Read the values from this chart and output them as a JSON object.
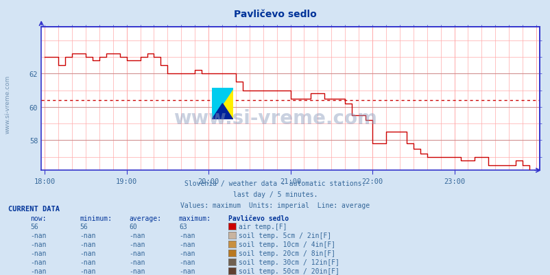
{
  "title": "Pavličevo sedlo",
  "bg_color": "#d4e4f4",
  "plot_bg_color": "#ffffff",
  "line_color": "#cc0000",
  "avg_line_color": "#cc0000",
  "avg_value": 60.4,
  "title_color": "#003399",
  "text_color": "#336699",
  "subtitle1": "Slovenia / weather data - automatic stations.",
  "subtitle2": "last day / 5 minutes.",
  "subtitle3": "Values: maximum  Units: imperial  Line: average",
  "xtick_labels": [
    "18:00",
    "19:00",
    "20:00",
    "21:00",
    "22:00",
    "23:00"
  ],
  "xtick_positions": [
    0,
    12,
    24,
    36,
    48,
    60
  ],
  "ytick_labels": [
    "58",
    "60",
    "62"
  ],
  "ytick_positions": [
    58,
    60,
    62
  ],
  "ylim": [
    56.2,
    64.8
  ],
  "xlim": [
    -0.5,
    72.5
  ],
  "current_data_label": "CURRENT DATA",
  "col_headers": [
    "now:",
    "minimum:",
    "average:",
    "maximum:",
    "Pavličevo sedlo"
  ],
  "rows": [
    {
      "now": "56",
      "min": "56",
      "avg": "60",
      "max": "63",
      "color": "#cc0000",
      "label": "air temp.[F]"
    },
    {
      "now": "-nan",
      "min": "-nan",
      "avg": "-nan",
      "max": "-nan",
      "color": "#c8b4a0",
      "label": "soil temp. 5cm / 2in[F]"
    },
    {
      "now": "-nan",
      "min": "-nan",
      "avg": "-nan",
      "max": "-nan",
      "color": "#c89040",
      "label": "soil temp. 10cm / 4in[F]"
    },
    {
      "now": "-nan",
      "min": "-nan",
      "avg": "-nan",
      "max": "-nan",
      "color": "#b87820",
      "label": "soil temp. 20cm / 8in[F]"
    },
    {
      "now": "-nan",
      "min": "-nan",
      "avg": "-nan",
      "max": "-nan",
      "color": "#706050",
      "label": "soil temp. 30cm / 12in[F]"
    },
    {
      "now": "-nan",
      "min": "-nan",
      "avg": "-nan",
      "max": "-nan",
      "color": "#604030",
      "label": "soil temp. 50cm / 20in[F]"
    }
  ],
  "temp_x": [
    0,
    1,
    2,
    3,
    4,
    5,
    6,
    7,
    8,
    9,
    10,
    11,
    12,
    13,
    14,
    15,
    16,
    17,
    18,
    19,
    20,
    21,
    22,
    23,
    24,
    25,
    26,
    27,
    28,
    29,
    30,
    31,
    32,
    33,
    34,
    35,
    36,
    37,
    38,
    39,
    40,
    41,
    42,
    43,
    44,
    45,
    46,
    47,
    48,
    49,
    50,
    51,
    52,
    53,
    54,
    55,
    56,
    57,
    58,
    59,
    60,
    61,
    62,
    63,
    64,
    65,
    66,
    67,
    68,
    69,
    70,
    71
  ],
  "temp_y": [
    63.0,
    63.0,
    62.5,
    63.0,
    63.2,
    63.2,
    63.0,
    62.8,
    63.0,
    63.2,
    63.2,
    63.0,
    62.8,
    62.8,
    63.0,
    63.2,
    63.0,
    62.5,
    62.0,
    62.0,
    62.0,
    62.0,
    62.2,
    62.0,
    62.0,
    62.0,
    62.0,
    62.0,
    61.5,
    61.0,
    61.0,
    61.0,
    61.0,
    61.0,
    61.0,
    61.0,
    60.5,
    60.5,
    60.5,
    60.8,
    60.8,
    60.5,
    60.5,
    60.5,
    60.2,
    59.5,
    59.5,
    59.2,
    57.8,
    57.8,
    58.5,
    58.5,
    58.5,
    57.8,
    57.5,
    57.2,
    57.0,
    57.0,
    57.0,
    57.0,
    57.0,
    56.8,
    56.8,
    57.0,
    57.0,
    56.5,
    56.5,
    56.5,
    56.5,
    56.8,
    56.5,
    56.2
  ]
}
